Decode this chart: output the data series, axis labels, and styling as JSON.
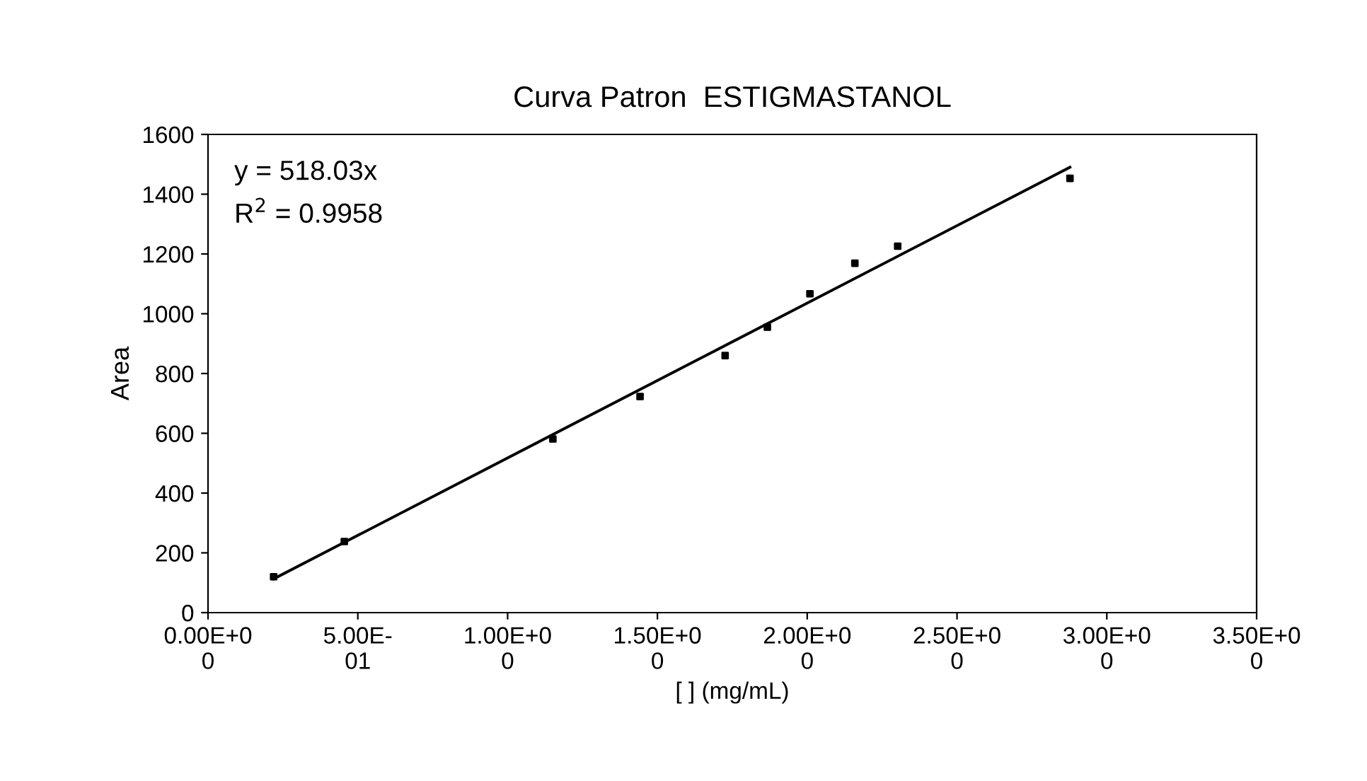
{
  "chart_data": {
    "type": "scatter",
    "title": "Curva Patron  ESTIGMASTANOL",
    "xlabel": "[ ] (mg/mL)",
    "ylabel": "Area",
    "annotations": [
      "y = 518.03x",
      "R$^{2}$ = 0.9958"
    ],
    "x": [
      0.219,
      0.455,
      1.151,
      1.442,
      1.726,
      1.867,
      2.009,
      2.159,
      2.302,
      2.877
    ],
    "series": [
      {
        "color": "#000000",
        "marker": "square",
        "values": [
          120,
          238,
          581,
          723,
          860,
          955,
          1067,
          1169,
          1226,
          1453
        ]
      },
      {
        "type": "line",
        "color": "#000000",
        "x": [
          0.219,
          2.877
        ],
        "values": [
          113,
          1490
        ],
        "marker": "none",
        "line_style": "solid"
      }
    ],
    "xlim": [
      0,
      3.5
    ],
    "xticks": [
      {
        "value": 0,
        "label": "0.00E+00"
      },
      {
        "value": 0.5,
        "label": "5.00E-01"
      },
      {
        "value": 1,
        "label": "1.00E+00"
      },
      {
        "value": 1.5,
        "label": "1.50E+00"
      },
      {
        "value": 2,
        "label": "2.00E+00"
      },
      {
        "value": 2.5,
        "label": "2.50E+00"
      },
      {
        "value": 3,
        "label": "3.00E+00"
      },
      {
        "value": 3.5,
        "label": "3.50E+00"
      }
    ],
    "ylim": [
      0,
      1600
    ],
    "yticks": [
      0,
      200,
      400,
      600,
      800,
      1000,
      1200,
      1400,
      1600
    ],
    "grid": false,
    "legend": false
  }
}
